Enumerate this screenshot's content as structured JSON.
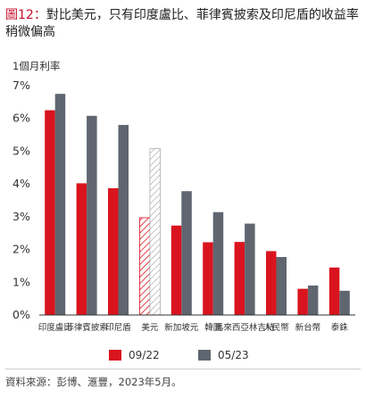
{
  "title": {
    "label": "圖12：",
    "text": "對比美元，只有印度盧比、菲律賓披索及印尼盾的收益率稍微偏高"
  },
  "colors": {
    "series_0922": "#d9141e",
    "series_0523": "#5f6670",
    "axis": "#333333",
    "gridline": "#e6e6e6"
  },
  "chart_data": {
    "type": "bar",
    "ylabel": "1個月利率",
    "ylim": [
      0,
      7
    ],
    "yticks": [
      "0%",
      "1%",
      "2%",
      "3%",
      "4%",
      "5%",
      "6%",
      "7%"
    ],
    "categories": [
      "印度盧比",
      "菲律賓披索",
      "印尼盾",
      "美元",
      "新加坡元",
      "韓圜",
      "馬來西亞林吉特",
      "人民幣",
      "新台幣",
      "泰銖"
    ],
    "series": [
      {
        "name": "09/22",
        "values": [
          6.25,
          4.02,
          3.87,
          2.97,
          2.73,
          2.22,
          2.23,
          1.95,
          0.8,
          1.45
        ]
      },
      {
        "name": "05/23",
        "values": [
          6.75,
          6.08,
          5.8,
          5.08,
          3.78,
          3.14,
          2.79,
          1.77,
          0.9,
          0.74
        ]
      }
    ],
    "hatched_category": "美元",
    "legend_position": "bottom",
    "grid": false
  },
  "source": "資料來源：彭博、滙豐，2023年5月。"
}
